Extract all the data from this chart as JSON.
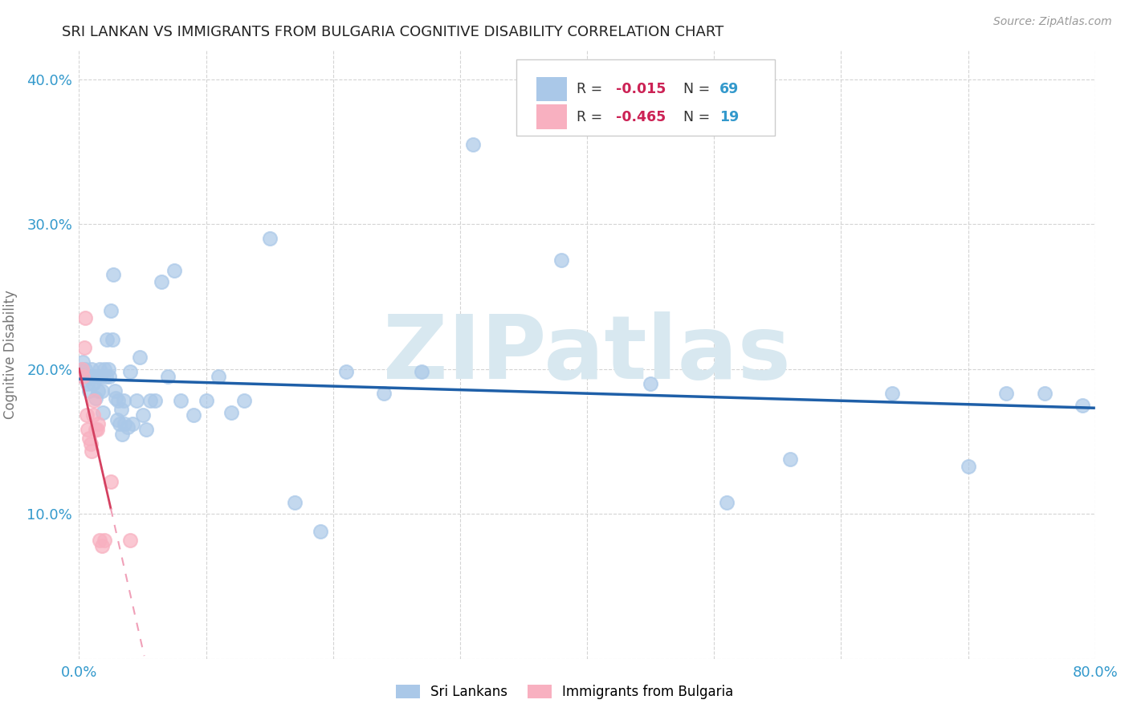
{
  "title": "SRI LANKAN VS IMMIGRANTS FROM BULGARIA COGNITIVE DISABILITY CORRELATION CHART",
  "source": "Source: ZipAtlas.com",
  "ylabel": "Cognitive Disability",
  "watermark": "ZIPatlas",
  "xlim": [
    0.0,
    0.8
  ],
  "ylim": [
    0.0,
    0.42
  ],
  "sri_lankan_x": [
    0.002,
    0.003,
    0.004,
    0.005,
    0.006,
    0.007,
    0.008,
    0.009,
    0.01,
    0.011,
    0.012,
    0.013,
    0.014,
    0.015,
    0.016,
    0.017,
    0.018,
    0.019,
    0.02,
    0.021,
    0.022,
    0.023,
    0.024,
    0.025,
    0.026,
    0.027,
    0.028,
    0.029,
    0.03,
    0.031,
    0.032,
    0.033,
    0.034,
    0.035,
    0.036,
    0.038,
    0.04,
    0.042,
    0.045,
    0.048,
    0.05,
    0.053,
    0.056,
    0.06,
    0.065,
    0.07,
    0.075,
    0.08,
    0.09,
    0.1,
    0.11,
    0.12,
    0.13,
    0.15,
    0.17,
    0.19,
    0.21,
    0.24,
    0.27,
    0.31,
    0.38,
    0.45,
    0.51,
    0.56,
    0.64,
    0.7,
    0.73,
    0.76,
    0.79
  ],
  "sri_lankan_y": [
    0.2,
    0.205,
    0.195,
    0.2,
    0.195,
    0.19,
    0.185,
    0.195,
    0.2,
    0.19,
    0.195,
    0.18,
    0.195,
    0.185,
    0.2,
    0.195,
    0.185,
    0.17,
    0.2,
    0.195,
    0.22,
    0.2,
    0.195,
    0.24,
    0.22,
    0.265,
    0.185,
    0.18,
    0.165,
    0.178,
    0.162,
    0.172,
    0.155,
    0.178,
    0.162,
    0.16,
    0.198,
    0.162,
    0.178,
    0.208,
    0.168,
    0.158,
    0.178,
    0.178,
    0.26,
    0.195,
    0.268,
    0.178,
    0.168,
    0.178,
    0.195,
    0.17,
    0.178,
    0.29,
    0.108,
    0.088,
    0.198,
    0.183,
    0.198,
    0.355,
    0.275,
    0.19,
    0.108,
    0.138,
    0.183,
    0.133,
    0.183,
    0.183,
    0.175
  ],
  "bulgarian_x": [
    0.002,
    0.003,
    0.004,
    0.005,
    0.006,
    0.007,
    0.008,
    0.009,
    0.01,
    0.011,
    0.012,
    0.013,
    0.014,
    0.015,
    0.016,
    0.018,
    0.02,
    0.025,
    0.04
  ],
  "bulgarian_y": [
    0.2,
    0.195,
    0.215,
    0.235,
    0.168,
    0.158,
    0.152,
    0.148,
    0.143,
    0.168,
    0.178,
    0.158,
    0.158,
    0.162,
    0.082,
    0.078,
    0.082,
    0.122,
    0.082
  ],
  "sri_lankan_color": "#aac8e8",
  "bulgarian_color": "#f8b0c0",
  "sri_lankan_line_color": "#1e5fa8",
  "bulgarian_line_color": "#d44060",
  "bulgarian_line_dashed_color": "#f0a0b8",
  "grid_color": "#d0d0d0",
  "R_sri": -0.015,
  "N_sri": 69,
  "R_bul": -0.465,
  "N_bul": 19,
  "legend_label_sri": "Sri Lankans",
  "legend_label_bul": "Immigrants from Bulgaria",
  "title_color": "#222222",
  "axis_color": "#3399cc",
  "label_color": "#777777",
  "watermark_color": "#d8e8f0",
  "background_color": "#ffffff",
  "legend_text_black": "R = ",
  "legend_r_color": "#cc2255",
  "legend_n_color": "#3399cc"
}
